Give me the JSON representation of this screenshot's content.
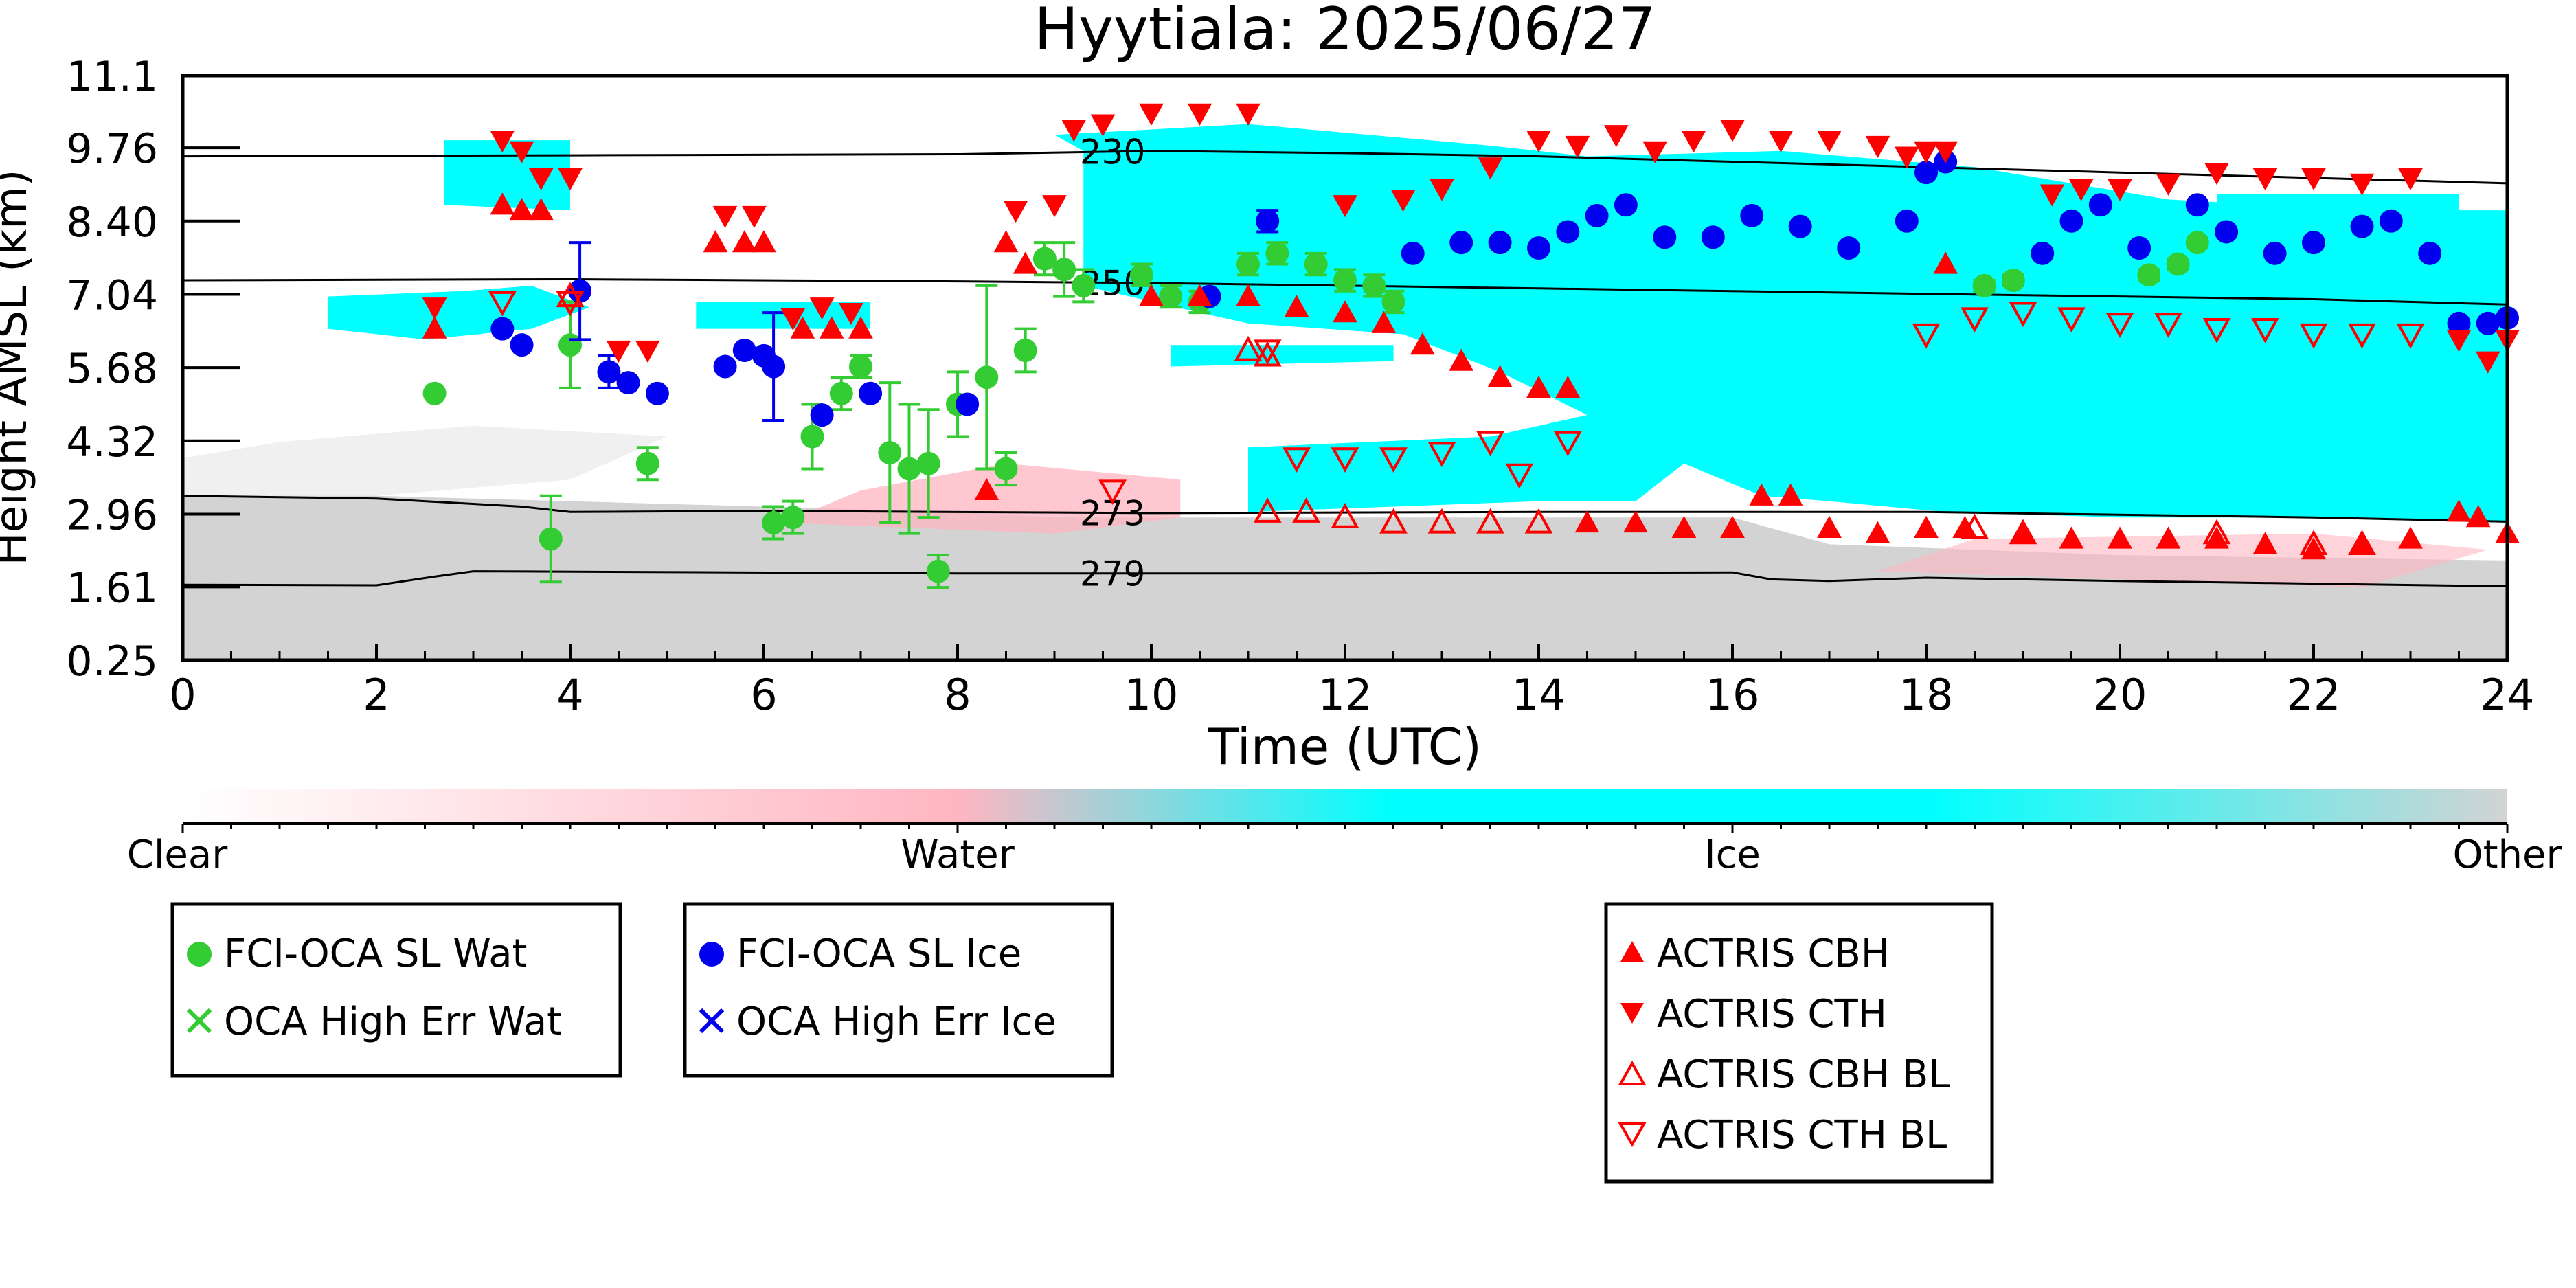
{
  "chart_data": {
    "type": "scatter",
    "title": "Hyytiala: 2025/06/27",
    "xlabel": "Time (UTC)",
    "ylabel": "Height AMSL (km)",
    "xlim": [
      0,
      24
    ],
    "ylim": [
      0.25,
      11.1
    ],
    "xticks": [
      0,
      2,
      4,
      6,
      8,
      10,
      12,
      14,
      16,
      18,
      20,
      22,
      24
    ],
    "yticks": [
      0.25,
      1.61,
      2.96,
      4.32,
      5.68,
      7.04,
      8.4,
      9.76,
      11.1
    ],
    "ytick_labels": [
      "0.25",
      "1.61",
      "2.96",
      "4.32",
      "5.68",
      "7.04",
      "8.40",
      "9.76",
      "11.1"
    ],
    "colorbar": {
      "labels": [
        "Clear",
        "Water",
        "Ice",
        "Other"
      ],
      "colors": [
        "#ffffff",
        "#ffb6c1",
        "#00ffff",
        "#d3d3d3"
      ]
    },
    "temperature_contours": [
      {
        "label": "230",
        "label_x": 9.6,
        "points": [
          [
            0,
            9.6
          ],
          [
            4,
            9.62
          ],
          [
            8,
            9.64
          ],
          [
            10,
            9.7
          ],
          [
            12,
            9.66
          ],
          [
            14,
            9.6
          ],
          [
            16,
            9.5
          ],
          [
            18,
            9.4
          ],
          [
            20,
            9.3
          ],
          [
            22,
            9.2
          ],
          [
            24,
            9.1
          ]
        ]
      },
      {
        "label": "250",
        "label_x": 9.6,
        "points": [
          [
            0,
            7.3
          ],
          [
            4,
            7.32
          ],
          [
            8,
            7.28
          ],
          [
            10,
            7.25
          ],
          [
            12,
            7.2
          ],
          [
            14,
            7.15
          ],
          [
            16,
            7.1
          ],
          [
            18,
            7.05
          ],
          [
            20,
            7.0
          ],
          [
            22,
            6.95
          ],
          [
            24,
            6.85
          ]
        ]
      },
      {
        "label": "273",
        "label_x": 9.6,
        "points": [
          [
            0,
            3.3
          ],
          [
            2,
            3.25
          ],
          [
            3.5,
            3.1
          ],
          [
            4,
            3.0
          ],
          [
            6,
            3.02
          ],
          [
            10,
            2.98
          ],
          [
            14,
            3.0
          ],
          [
            18,
            3.0
          ],
          [
            22,
            2.9
          ],
          [
            24,
            2.82
          ]
        ]
      },
      {
        "label": "279",
        "label_x": 9.6,
        "points": [
          [
            0,
            1.65
          ],
          [
            2,
            1.64
          ],
          [
            2.6,
            1.8
          ],
          [
            3,
            1.9
          ],
          [
            8,
            1.86
          ],
          [
            12,
            1.86
          ],
          [
            16,
            1.88
          ],
          [
            16.4,
            1.75
          ],
          [
            17,
            1.72
          ],
          [
            18,
            1.78
          ],
          [
            20,
            1.72
          ],
          [
            24,
            1.62
          ]
        ]
      }
    ],
    "series": [
      {
        "name": "FCI-OCA SL Wat",
        "marker": "circle",
        "color": "#33cc33",
        "points": [
          [
            2.6,
            5.2,
            0
          ],
          [
            3.8,
            2.5,
            0.8
          ],
          [
            4.0,
            6.1,
            0.8
          ],
          [
            4.8,
            3.9,
            0.3
          ],
          [
            6.1,
            2.8,
            0.3
          ],
          [
            6.3,
            2.9,
            0.3
          ],
          [
            6.5,
            4.4,
            0.6
          ],
          [
            6.8,
            5.2,
            0.3
          ],
          [
            7.0,
            5.7,
            0.2
          ],
          [
            7.3,
            4.1,
            1.3
          ],
          [
            7.5,
            3.8,
            1.2
          ],
          [
            7.7,
            3.9,
            1.0
          ],
          [
            7.8,
            1.9,
            0.3
          ],
          [
            8.0,
            5.0,
            0.6
          ],
          [
            8.3,
            5.5,
            1.7
          ],
          [
            8.5,
            3.8,
            0.3
          ],
          [
            8.7,
            6.0,
            0.4
          ],
          [
            8.9,
            7.7,
            0.3
          ],
          [
            9.1,
            7.5,
            0.5
          ],
          [
            9.3,
            7.2,
            0.3
          ],
          [
            9.9,
            7.4,
            0.2
          ],
          [
            10.2,
            7.0,
            0.2
          ],
          [
            10.5,
            6.9,
            0.2
          ],
          [
            11.0,
            7.6,
            0.2
          ],
          [
            11.3,
            7.8,
            0.2
          ],
          [
            11.7,
            7.6,
            0.2
          ],
          [
            12.0,
            7.3,
            0.2
          ],
          [
            12.3,
            7.2,
            0.2
          ],
          [
            12.5,
            6.9,
            0.2
          ],
          [
            18.6,
            7.2,
            0.1
          ],
          [
            18.9,
            7.3,
            0.1
          ],
          [
            20.3,
            7.4,
            0.1
          ],
          [
            20.6,
            7.6,
            0.1
          ],
          [
            20.8,
            8.0,
            0.1
          ]
        ]
      },
      {
        "name": "FCI-OCA SL Ice",
        "marker": "circle",
        "color": "#0000ee",
        "points": [
          [
            3.3,
            6.4,
            0
          ],
          [
            3.5,
            6.1,
            0
          ],
          [
            4.1,
            7.1,
            0.9
          ],
          [
            4.4,
            5.6,
            0.3
          ],
          [
            4.6,
            5.4,
            0
          ],
          [
            4.9,
            5.2,
            0
          ],
          [
            5.6,
            5.7,
            0
          ],
          [
            5.8,
            6.0,
            0
          ],
          [
            6.0,
            5.9,
            0
          ],
          [
            6.1,
            5.7,
            1.0
          ],
          [
            6.6,
            4.8,
            0
          ],
          [
            7.1,
            5.2,
            0
          ],
          [
            8.1,
            5.0,
            0
          ],
          [
            10.6,
            7.0,
            0
          ],
          [
            11.2,
            8.4,
            0.2
          ],
          [
            12.7,
            7.8,
            0
          ],
          [
            13.2,
            8.0,
            0
          ],
          [
            13.6,
            8.0,
            0
          ],
          [
            14.0,
            7.9,
            0
          ],
          [
            14.3,
            8.2,
            0
          ],
          [
            14.6,
            8.5,
            0
          ],
          [
            14.9,
            8.7,
            0
          ],
          [
            15.3,
            8.1,
            0
          ],
          [
            15.8,
            8.1,
            0
          ],
          [
            16.2,
            8.5,
            0
          ],
          [
            16.7,
            8.3,
            0
          ],
          [
            17.2,
            7.9,
            0
          ],
          [
            17.8,
            8.4,
            0
          ],
          [
            18.0,
            9.3,
            0
          ],
          [
            18.2,
            9.5,
            0
          ],
          [
            19.2,
            7.8,
            0
          ],
          [
            19.5,
            8.4,
            0
          ],
          [
            19.8,
            8.7,
            0
          ],
          [
            20.2,
            7.9,
            0
          ],
          [
            20.8,
            8.7,
            0
          ],
          [
            21.1,
            8.2,
            0
          ],
          [
            21.6,
            7.8,
            0
          ],
          [
            22.0,
            8.0,
            0
          ],
          [
            22.5,
            8.3,
            0
          ],
          [
            22.8,
            8.4,
            0
          ],
          [
            23.2,
            7.8,
            0
          ],
          [
            23.5,
            6.5,
            0
          ],
          [
            23.8,
            6.5,
            0
          ],
          [
            24.0,
            6.6,
            0
          ]
        ]
      },
      {
        "name": "OCA High Err Wat",
        "marker": "x",
        "color": "#33cc33",
        "points": []
      },
      {
        "name": "OCA High Err Ice",
        "marker": "x",
        "color": "#0000ee",
        "points": []
      },
      {
        "name": "ACTRIS CBH",
        "marker": "triangle-up",
        "color": "#ff0000",
        "points": [
          [
            2.6,
            6.4
          ],
          [
            3.3,
            8.7
          ],
          [
            3.5,
            8.6
          ],
          [
            3.7,
            8.6
          ],
          [
            5.5,
            8.0
          ],
          [
            5.8,
            8.0
          ],
          [
            6.0,
            8.0
          ],
          [
            6.4,
            6.4
          ],
          [
            6.7,
            6.4
          ],
          [
            7.0,
            6.4
          ],
          [
            8.3,
            3.4
          ],
          [
            8.5,
            8.0
          ],
          [
            8.7,
            7.6
          ],
          [
            10.0,
            7.0
          ],
          [
            10.5,
            7.0
          ],
          [
            11.0,
            7.0
          ],
          [
            11.5,
            6.8
          ],
          [
            12.0,
            6.7
          ],
          [
            12.4,
            6.5
          ],
          [
            12.8,
            6.1
          ],
          [
            13.2,
            5.8
          ],
          [
            13.6,
            5.5
          ],
          [
            14.0,
            5.3
          ],
          [
            14.3,
            5.3
          ],
          [
            14.5,
            2.8
          ],
          [
            15.0,
            2.8
          ],
          [
            15.5,
            2.7
          ],
          [
            16.0,
            2.7
          ],
          [
            16.3,
            3.3
          ],
          [
            16.6,
            3.3
          ],
          [
            17.0,
            2.7
          ],
          [
            17.5,
            2.6
          ],
          [
            18.0,
            2.7
          ],
          [
            18.2,
            7.6
          ],
          [
            18.4,
            2.7
          ],
          [
            19.0,
            2.6
          ],
          [
            19.5,
            2.5
          ],
          [
            20.0,
            2.5
          ],
          [
            20.5,
            2.5
          ],
          [
            21.0,
            2.5
          ],
          [
            21.5,
            2.4
          ],
          [
            22.0,
            2.3
          ],
          [
            22.5,
            2.4
          ],
          [
            23.0,
            2.5
          ],
          [
            23.5,
            3.0
          ],
          [
            23.7,
            2.9
          ],
          [
            24.0,
            2.6
          ]
        ]
      },
      {
        "name": "ACTRIS CTH",
        "marker": "triangle-down",
        "color": "#ff0000",
        "points": [
          [
            2.6,
            6.8
          ],
          [
            3.3,
            9.9
          ],
          [
            3.5,
            9.7
          ],
          [
            3.7,
            9.2
          ],
          [
            4.0,
            9.2
          ],
          [
            4.5,
            6.0
          ],
          [
            4.8,
            6.0
          ],
          [
            5.6,
            8.5
          ],
          [
            5.9,
            8.5
          ],
          [
            6.3,
            6.6
          ],
          [
            6.6,
            6.8
          ],
          [
            6.9,
            6.7
          ],
          [
            8.6,
            8.6
          ],
          [
            9.0,
            8.7
          ],
          [
            9.2,
            10.1
          ],
          [
            9.5,
            10.2
          ],
          [
            10.0,
            10.4
          ],
          [
            10.5,
            10.4
          ],
          [
            11.0,
            10.4
          ],
          [
            12.0,
            8.7
          ],
          [
            12.6,
            8.8
          ],
          [
            13.0,
            9.0
          ],
          [
            13.5,
            9.4
          ],
          [
            14.0,
            9.9
          ],
          [
            14.4,
            9.8
          ],
          [
            14.8,
            10.0
          ],
          [
            15.2,
            9.7
          ],
          [
            15.6,
            9.9
          ],
          [
            16.0,
            10.1
          ],
          [
            16.5,
            9.9
          ],
          [
            17.0,
            9.9
          ],
          [
            17.5,
            9.8
          ],
          [
            17.8,
            9.6
          ],
          [
            18.0,
            9.7
          ],
          [
            18.2,
            9.7
          ],
          [
            19.3,
            8.9
          ],
          [
            19.6,
            9.0
          ],
          [
            20.0,
            9.0
          ],
          [
            20.5,
            9.1
          ],
          [
            21.0,
            9.3
          ],
          [
            21.5,
            9.2
          ],
          [
            22.0,
            9.2
          ],
          [
            22.5,
            9.1
          ],
          [
            23.0,
            9.2
          ],
          [
            23.5,
            6.2
          ],
          [
            23.8,
            5.8
          ],
          [
            24.0,
            6.2
          ]
        ]
      },
      {
        "name": "ACTRIS CBH BL",
        "marker": "triangle-up-open",
        "color": "#ff0000",
        "points": [
          [
            4.0,
            7.0
          ],
          [
            11.0,
            6.0
          ],
          [
            11.2,
            5.9
          ],
          [
            11.2,
            3.0
          ],
          [
            11.6,
            3.0
          ],
          [
            12.0,
            2.9
          ],
          [
            12.5,
            2.8
          ],
          [
            13.0,
            2.8
          ],
          [
            13.5,
            2.8
          ],
          [
            14.0,
            2.8
          ],
          [
            18.5,
            2.7
          ],
          [
            19.0,
            2.6
          ],
          [
            21.0,
            2.6
          ],
          [
            22.0,
            2.4
          ],
          [
            22.5,
            2.4
          ]
        ]
      },
      {
        "name": "ACTRIS CTH BL",
        "marker": "triangle-down-open",
        "color": "#ff0000",
        "points": [
          [
            3.3,
            6.9
          ],
          [
            4.0,
            6.9
          ],
          [
            9.6,
            3.4
          ],
          [
            11.2,
            6.0
          ],
          [
            11.5,
            4.0
          ],
          [
            12.0,
            4.0
          ],
          [
            12.5,
            4.0
          ],
          [
            13.0,
            4.1
          ],
          [
            13.5,
            4.3
          ],
          [
            13.8,
            3.7
          ],
          [
            14.3,
            4.3
          ],
          [
            18.0,
            6.3
          ],
          [
            18.5,
            6.6
          ],
          [
            19.0,
            6.7
          ],
          [
            19.5,
            6.6
          ],
          [
            20.0,
            6.5
          ],
          [
            20.5,
            6.5
          ],
          [
            21.0,
            6.4
          ],
          [
            21.5,
            6.4
          ],
          [
            22.0,
            6.3
          ],
          [
            22.5,
            6.3
          ],
          [
            23.0,
            6.3
          ]
        ]
      }
    ],
    "legend": {
      "placement": "bottom",
      "boxes": [
        [
          "FCI-OCA SL Wat",
          "OCA High Err Wat"
        ],
        [
          "FCI-OCA SL Ice",
          "OCA High Err Ice"
        ],
        [
          "ACTRIS CBH",
          "ACTRIS CTH",
          "ACTRIS CBH BL",
          "ACTRIS CTH BL"
        ]
      ]
    }
  }
}
